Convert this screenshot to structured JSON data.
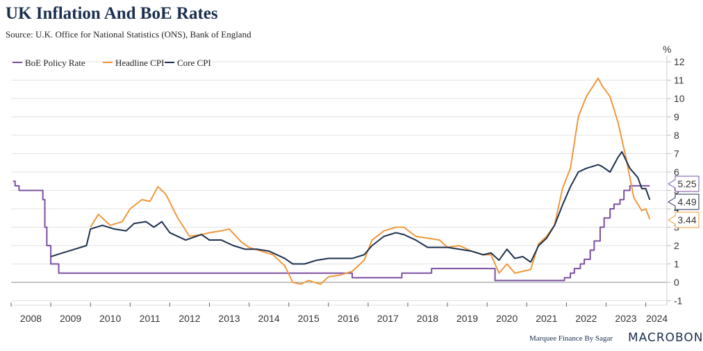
{
  "title": "UK Inflation And BoE Rates",
  "subtitle": "Source: U.K. Office for National Statistics (ONS), Bank of England",
  "footer": "Marquee Finance By Sagar",
  "logo": "MACROBOND",
  "chart_data": {
    "type": "line",
    "title": "UK Inflation And BoE Rates",
    "ylabel": "%",
    "ylim": [
      -1,
      12
    ],
    "xlim": [
      2008,
      2024.2
    ],
    "yticks": [
      "-1",
      "0",
      "1",
      "2",
      "3",
      "4",
      "5",
      "6",
      "7",
      "8",
      "9",
      "10",
      "11",
      "12"
    ],
    "xticks": [
      "2008",
      "2009",
      "2010",
      "2011",
      "2012",
      "2013",
      "2014",
      "2015",
      "2016",
      "2017",
      "2018",
      "2019",
      "2020",
      "2021",
      "2022",
      "2023",
      "2024"
    ],
    "legend": "top-left",
    "series": [
      {
        "name": "BoE Policy Rate",
        "color": "#7b4fa0",
        "last": "5.25",
        "step": true,
        "x": [
          2008.05,
          2008.1,
          2008.2,
          2008.8,
          2008.85,
          2008.9,
          2009.0,
          2009.2,
          2016.6,
          2017.85,
          2018.6,
          2020.2,
          2021.95,
          2022.1,
          2022.2,
          2022.35,
          2022.45,
          2022.6,
          2022.7,
          2022.85,
          2022.95,
          2023.1,
          2023.2,
          2023.35,
          2023.45,
          2023.6,
          2024.1
        ],
        "y": [
          5.5,
          5.25,
          5.0,
          4.5,
          3.0,
          2.0,
          1.0,
          0.5,
          0.25,
          0.5,
          0.75,
          0.1,
          0.25,
          0.5,
          0.75,
          1.0,
          1.25,
          1.75,
          2.25,
          3.0,
          3.5,
          4.0,
          4.25,
          4.5,
          5.0,
          5.25,
          5.25
        ]
      },
      {
        "name": "Headline CPI",
        "color": "#f0973a",
        "last": "3.44",
        "x": [
          2010.0,
          2010.2,
          2010.5,
          2010.8,
          2011.0,
          2011.3,
          2011.5,
          2011.7,
          2011.9,
          2012.2,
          2012.5,
          2012.8,
          2013.0,
          2013.3,
          2013.5,
          2013.8,
          2014.0,
          2014.3,
          2014.6,
          2014.9,
          2015.1,
          2015.3,
          2015.5,
          2015.8,
          2016.0,
          2016.3,
          2016.6,
          2016.9,
          2017.1,
          2017.4,
          2017.7,
          2017.9,
          2018.2,
          2018.5,
          2018.8,
          2019.0,
          2019.3,
          2019.6,
          2019.9,
          2020.1,
          2020.3,
          2020.5,
          2020.7,
          2020.9,
          2021.1,
          2021.3,
          2021.5,
          2021.7,
          2021.9,
          2022.1,
          2022.3,
          2022.5,
          2022.8,
          2022.9,
          2023.1,
          2023.3,
          2023.5,
          2023.7,
          2023.9,
          2024.0,
          2024.1
        ],
        "y": [
          3.0,
          3.7,
          3.1,
          3.3,
          4.0,
          4.5,
          4.4,
          5.2,
          4.8,
          3.5,
          2.5,
          2.6,
          2.7,
          2.8,
          2.9,
          2.2,
          1.9,
          1.7,
          1.5,
          0.9,
          0.0,
          -0.1,
          0.1,
          -0.1,
          0.3,
          0.4,
          0.6,
          1.2,
          2.3,
          2.8,
          3.0,
          3.0,
          2.5,
          2.4,
          2.3,
          1.9,
          2.0,
          1.7,
          1.5,
          1.5,
          0.5,
          1.0,
          0.5,
          0.6,
          0.7,
          2.1,
          2.5,
          3.1,
          5.1,
          6.2,
          9.0,
          10.1,
          11.1,
          10.7,
          10.1,
          8.7,
          6.8,
          4.6,
          3.9,
          4.0,
          3.44
        ]
      },
      {
        "name": "Core CPI",
        "color": "#1b2f4e",
        "last": "4.49",
        "x": [
          2009.0,
          2009.3,
          2009.6,
          2009.9,
          2010.0,
          2010.3,
          2010.6,
          2010.9,
          2011.1,
          2011.4,
          2011.6,
          2011.8,
          2012.0,
          2012.4,
          2012.8,
          2013.0,
          2013.3,
          2013.6,
          2013.9,
          2014.2,
          2014.5,
          2014.9,
          2015.1,
          2015.4,
          2015.7,
          2016.0,
          2016.3,
          2016.6,
          2016.9,
          2017.1,
          2017.4,
          2017.7,
          2017.9,
          2018.2,
          2018.5,
          2018.8,
          2019.0,
          2019.3,
          2019.6,
          2019.9,
          2020.1,
          2020.3,
          2020.5,
          2020.7,
          2020.9,
          2021.1,
          2021.3,
          2021.5,
          2021.7,
          2021.9,
          2022.1,
          2022.3,
          2022.5,
          2022.8,
          2022.9,
          2023.1,
          2023.3,
          2023.4,
          2023.6,
          2023.8,
          2023.9,
          2024.0,
          2024.1
        ],
        "y": [
          1.4,
          1.6,
          1.8,
          2.0,
          2.9,
          3.1,
          2.9,
          2.8,
          3.2,
          3.3,
          3.0,
          3.3,
          2.7,
          2.3,
          2.6,
          2.3,
          2.3,
          2.0,
          1.8,
          1.8,
          1.7,
          1.3,
          1.0,
          1.0,
          1.2,
          1.3,
          1.3,
          1.3,
          1.5,
          2.0,
          2.5,
          2.7,
          2.6,
          2.3,
          1.9,
          1.9,
          1.9,
          1.8,
          1.7,
          1.5,
          1.6,
          1.2,
          1.8,
          1.3,
          1.4,
          1.1,
          2.0,
          2.4,
          3.1,
          4.2,
          5.2,
          6.0,
          6.2,
          6.4,
          6.3,
          6.0,
          6.8,
          7.1,
          6.2,
          5.7,
          5.1,
          5.1,
          4.49
        ]
      }
    ]
  }
}
